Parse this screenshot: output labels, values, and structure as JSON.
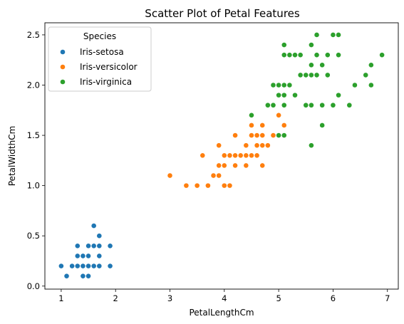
{
  "chart_data": {
    "type": "scatter",
    "title": "Scatter Plot of Petal Features",
    "xlabel": "PetalLengthCm",
    "ylabel": "PetalWidthCm",
    "xlim": [
      0.7,
      7.2
    ],
    "ylim": [
      -0.03,
      2.62
    ],
    "xticks": [
      1,
      2,
      3,
      4,
      5,
      6,
      7
    ],
    "yticks": [
      0.0,
      0.5,
      1.0,
      1.5,
      2.0,
      2.5
    ],
    "xtick_labels": [
      "1",
      "2",
      "3",
      "4",
      "5",
      "6",
      "7"
    ],
    "ytick_labels": [
      "0.0",
      "0.5",
      "1.0",
      "1.5",
      "2.0",
      "2.5"
    ],
    "grid": false,
    "legend": {
      "title": "Species",
      "position": "top-left"
    },
    "series": [
      {
        "name": "Iris-setosa",
        "color": "#1f77b4",
        "points": [
          [
            1.0,
            0.2
          ],
          [
            1.1,
            0.1
          ],
          [
            1.2,
            0.2
          ],
          [
            1.3,
            0.2
          ],
          [
            1.3,
            0.3
          ],
          [
            1.3,
            0.4
          ],
          [
            1.4,
            0.1
          ],
          [
            1.4,
            0.2
          ],
          [
            1.4,
            0.3
          ],
          [
            1.5,
            0.1
          ],
          [
            1.5,
            0.2
          ],
          [
            1.5,
            0.3
          ],
          [
            1.5,
            0.4
          ],
          [
            1.6,
            0.2
          ],
          [
            1.6,
            0.4
          ],
          [
            1.6,
            0.6
          ],
          [
            1.7,
            0.2
          ],
          [
            1.7,
            0.3
          ],
          [
            1.7,
            0.4
          ],
          [
            1.7,
            0.5
          ],
          [
            1.9,
            0.2
          ],
          [
            1.9,
            0.4
          ]
        ]
      },
      {
        "name": "Iris-versicolor",
        "color": "#ff7f0e",
        "points": [
          [
            3.0,
            1.1
          ],
          [
            3.3,
            1.0
          ],
          [
            3.5,
            1.0
          ],
          [
            3.6,
            1.3
          ],
          [
            3.7,
            1.0
          ],
          [
            3.8,
            1.1
          ],
          [
            3.9,
            1.1
          ],
          [
            3.9,
            1.2
          ],
          [
            3.9,
            1.4
          ],
          [
            4.0,
            1.0
          ],
          [
            4.0,
            1.2
          ],
          [
            4.0,
            1.3
          ],
          [
            4.1,
            1.0
          ],
          [
            4.1,
            1.3
          ],
          [
            4.2,
            1.2
          ],
          [
            4.2,
            1.3
          ],
          [
            4.2,
            1.5
          ],
          [
            4.3,
            1.3
          ],
          [
            4.4,
            1.2
          ],
          [
            4.4,
            1.3
          ],
          [
            4.4,
            1.4
          ],
          [
            4.5,
            1.3
          ],
          [
            4.5,
            1.5
          ],
          [
            4.5,
            1.6
          ],
          [
            4.6,
            1.3
          ],
          [
            4.6,
            1.4
          ],
          [
            4.6,
            1.5
          ],
          [
            4.7,
            1.2
          ],
          [
            4.7,
            1.4
          ],
          [
            4.7,
            1.5
          ],
          [
            4.7,
            1.6
          ],
          [
            4.8,
            1.4
          ],
          [
            4.8,
            1.8
          ],
          [
            4.9,
            1.5
          ],
          [
            5.0,
            1.7
          ],
          [
            5.1,
            1.6
          ]
        ]
      },
      {
        "name": "Iris-virginica",
        "color": "#2ca02c",
        "points": [
          [
            4.5,
            1.7
          ],
          [
            4.8,
            1.8
          ],
          [
            4.9,
            1.8
          ],
          [
            4.9,
            2.0
          ],
          [
            5.0,
            1.5
          ],
          [
            5.0,
            1.9
          ],
          [
            5.0,
            2.0
          ],
          [
            5.1,
            1.5
          ],
          [
            5.1,
            1.8
          ],
          [
            5.1,
            1.9
          ],
          [
            5.1,
            2.0
          ],
          [
            5.1,
            2.3
          ],
          [
            5.1,
            2.4
          ],
          [
            5.2,
            2.0
          ],
          [
            5.2,
            2.3
          ],
          [
            5.3,
            1.9
          ],
          [
            5.3,
            2.3
          ],
          [
            5.4,
            2.1
          ],
          [
            5.4,
            2.3
          ],
          [
            5.5,
            1.8
          ],
          [
            5.5,
            2.1
          ],
          [
            5.6,
            1.4
          ],
          [
            5.6,
            1.8
          ],
          [
            5.6,
            2.1
          ],
          [
            5.6,
            2.2
          ],
          [
            5.6,
            2.4
          ],
          [
            5.7,
            2.1
          ],
          [
            5.7,
            2.3
          ],
          [
            5.7,
            2.5
          ],
          [
            5.8,
            1.6
          ],
          [
            5.8,
            1.8
          ],
          [
            5.8,
            2.2
          ],
          [
            5.9,
            2.1
          ],
          [
            5.9,
            2.3
          ],
          [
            6.0,
            1.8
          ],
          [
            6.0,
            2.5
          ],
          [
            6.1,
            1.9
          ],
          [
            6.1,
            2.3
          ],
          [
            6.1,
            2.5
          ],
          [
            6.3,
            1.8
          ],
          [
            6.4,
            2.0
          ],
          [
            6.6,
            2.1
          ],
          [
            6.7,
            2.0
          ],
          [
            6.7,
            2.2
          ],
          [
            6.9,
            2.3
          ]
        ]
      }
    ]
  }
}
